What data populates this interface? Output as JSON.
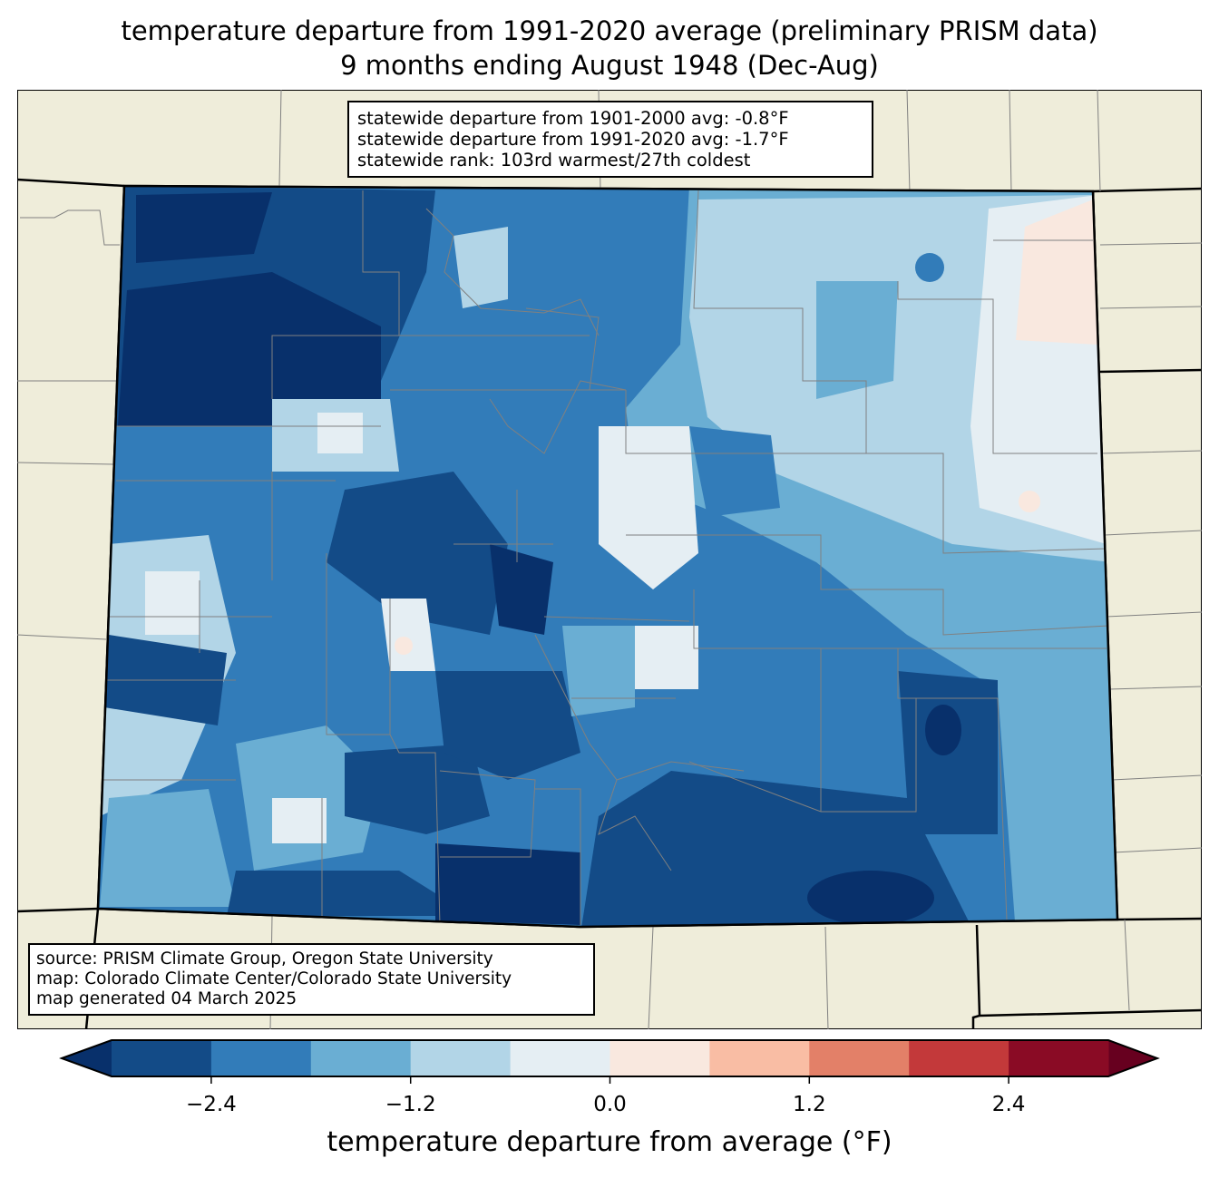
{
  "title": {
    "line1": "temperature departure from 1991-2020 average (preliminary PRISM data)",
    "line2": "9 months ending August 1948 (Dec-Aug)"
  },
  "stats": {
    "line1": "statewide departure from 1901-2000 avg: -0.8°F",
    "line2": "statewide departure from 1991-2020 avg: -1.7°F",
    "line3": "statewide rank: 103rd warmest/27th coldest"
  },
  "source": {
    "line1": "source: PRISM Climate Group, Oregon State University",
    "line2": "map: Colorado Climate Center/Colorado State University",
    "line3": "map generated 04 March 2025"
  },
  "colorbar": {
    "label": "temperature departure from average (°F)",
    "ticks": [
      "−2.4",
      "−1.2",
      "0.0",
      "1.2",
      "2.4"
    ],
    "tick_values": [
      -2.4,
      -1.2,
      0.0,
      1.2,
      2.4
    ],
    "range": [
      -3.0,
      3.0
    ],
    "levels": [
      -3.0,
      -2.4,
      -1.8,
      -1.2,
      -0.6,
      0.0,
      0.6,
      1.2,
      1.8,
      2.4,
      3.0
    ],
    "colors": [
      "#134b87",
      "#327cb9",
      "#6aaed3",
      "#b2d5e7",
      "#e5eef3",
      "#f9e8df",
      "#f9bda4",
      "#e38068",
      "#c3393a",
      "#8a0b25"
    ],
    "under_color": "#08306b",
    "over_color": "#67001f"
  },
  "map_colors": {
    "land": "#efedda",
    "county_line": "#808080"
  }
}
